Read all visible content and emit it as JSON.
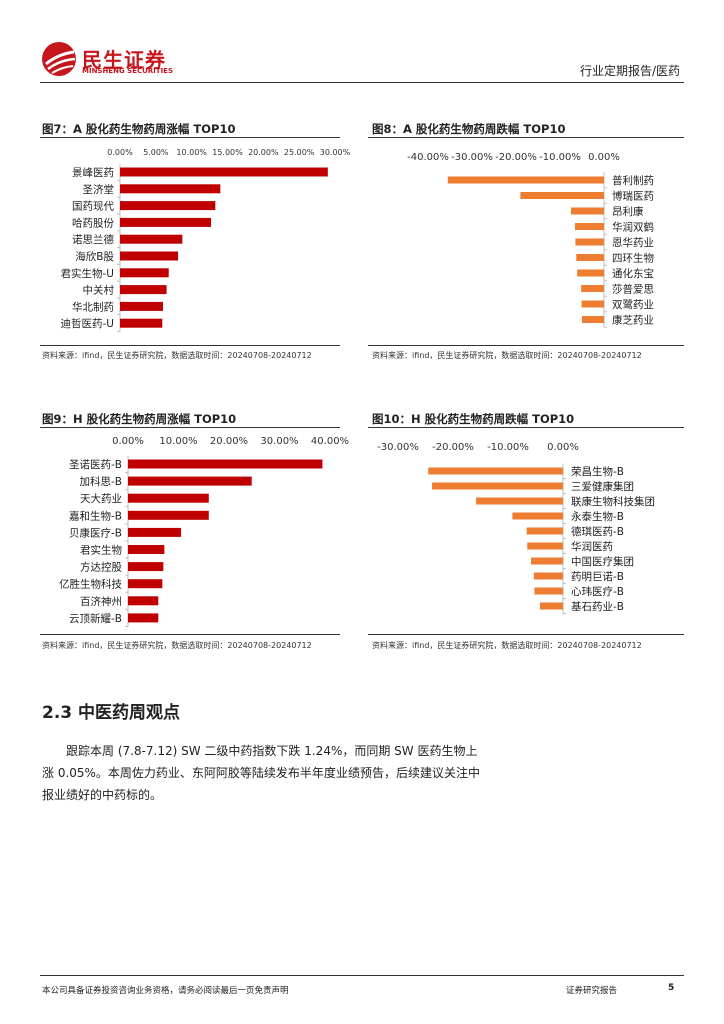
{
  "header": {
    "logo_cn": "民生证券",
    "logo_en": "MINSHENG SECURITIES",
    "report_type": "行业定期报告/医药",
    "brand_color": "#c5161d"
  },
  "figures": {
    "fig7": {
      "title": "图7：A 股化药生物药周涨幅 TOP10",
      "source": "资料来源：ifind，民生证券研究院，数据选取时间：20240708-20240712"
    },
    "fig8": {
      "title": "图8：A 股化药生物药周跌幅 TOP10",
      "source": "资料来源：ifind，民生证券研究院，数据选取时间：20240708-20240712"
    },
    "fig9": {
      "title": "图9：H 股化药生物药周涨幅 TOP10",
      "source": "资料来源：ifind，民生证券研究院，数据选取时间：20240708-20240712"
    },
    "fig10": {
      "title": "图10：H 股化药生物药周跌幅 TOP10",
      "source": "资料来源：ifind，民生证券研究院，数据选取时间：20240708-20240712"
    }
  },
  "chart_data": [
    {
      "id": "fig7",
      "type": "bar",
      "orientation": "horizontal",
      "color": "#c00000",
      "categories": [
        "景峰医药",
        "圣济堂",
        "国药现代",
        "哈药股份",
        "诺思兰德",
        "海欣B股",
        "君实生物-U",
        "中关村",
        "华北制药",
        "迪哲医药-U"
      ],
      "values": [
        29.0,
        14.0,
        13.3,
        12.7,
        8.7,
        8.1,
        6.8,
        6.5,
        6.0,
        5.9
      ],
      "xlim": [
        0,
        30
      ],
      "ticks": [
        0,
        5,
        10,
        15,
        20,
        25,
        30
      ],
      "tick_labels": [
        "0.00%",
        "5.00%",
        "10.00%",
        "15.00%",
        "20.00%",
        "25.00%",
        "30.00%"
      ],
      "axis_position": "top",
      "label_position": "left"
    },
    {
      "id": "fig8",
      "type": "bar",
      "orientation": "horizontal",
      "color": "#ed7d31",
      "categories": [
        "普利制药",
        "博瑞医药",
        "昂利康",
        "华润双鹤",
        "恩华药业",
        "四环生物",
        "通化东宝",
        "莎普爱思",
        "双鹭药业",
        "康芝药业"
      ],
      "values": [
        -35.5,
        -19.0,
        -7.5,
        -6.6,
        -6.5,
        -6.3,
        -6.1,
        -5.2,
        -5.1,
        -5.0
      ],
      "xlim": [
        -40,
        0
      ],
      "ticks": [
        -40,
        -30,
        -20,
        -10,
        0
      ],
      "tick_labels": [
        "-40.00%",
        "-30.00%",
        "-20.00%",
        "-10.00%",
        "0.00%"
      ],
      "axis_position": "top",
      "label_position": "right"
    },
    {
      "id": "fig9",
      "type": "bar",
      "orientation": "horizontal",
      "color": "#c00000",
      "categories": [
        "圣诺医药-B",
        "加科思-B",
        "天大药业",
        "嘉和生物-B",
        "贝康医疗-B",
        "君实生物",
        "方达控股",
        "亿胜生物科技",
        "百济神州",
        "云顶新耀-B"
      ],
      "values": [
        38.5,
        24.5,
        16.0,
        16.0,
        10.5,
        7.2,
        7.0,
        6.8,
        6.0,
        6.0
      ],
      "xlim": [
        0,
        40
      ],
      "ticks": [
        0,
        10,
        20,
        30,
        40
      ],
      "tick_labels": [
        "0.00%",
        "10.00%",
        "20.00%",
        "30.00%",
        "40.00%"
      ],
      "axis_position": "top",
      "label_position": "left"
    },
    {
      "id": "fig10",
      "type": "bar",
      "orientation": "horizontal",
      "color": "#ed7d31",
      "categories": [
        "荣昌生物-B",
        "三爱健康集团",
        "联康生物科技集团",
        "永泰生物-B",
        "德琪医药-B",
        "华润医药",
        "中国医疗集团",
        "药明巨诺-B",
        "心玮医疗-B",
        "基石药业-B"
      ],
      "values": [
        -24.5,
        -23.8,
        -15.8,
        -9.2,
        -6.6,
        -6.5,
        -5.8,
        -5.3,
        -5.2,
        -4.2
      ],
      "xlim": [
        -30,
        0
      ],
      "ticks": [
        -30,
        -20,
        -10,
        0
      ],
      "tick_labels": [
        "-30.00%",
        "-20.00%",
        "-10.00%",
        "0.00%"
      ],
      "axis_position": "top",
      "label_position": "right"
    }
  ],
  "section": {
    "title": "2.3 中医药周观点",
    "paragraph": "跟踪本周 (7.8-7.12) SW 二级中药指数下跌 1.24%，而同期 SW 医药生物上涨 0.05%。本周佐力药业、东阿阿胶等陆续发布半年度业绩预告，后续建议关注中报业绩好的中药标的。"
  },
  "footer": {
    "disclaimer": "本公司具备证券投资咨询业务资格，请务必阅读最后一页免责声明",
    "report_label": "证券研究报告",
    "page_number": "5"
  }
}
